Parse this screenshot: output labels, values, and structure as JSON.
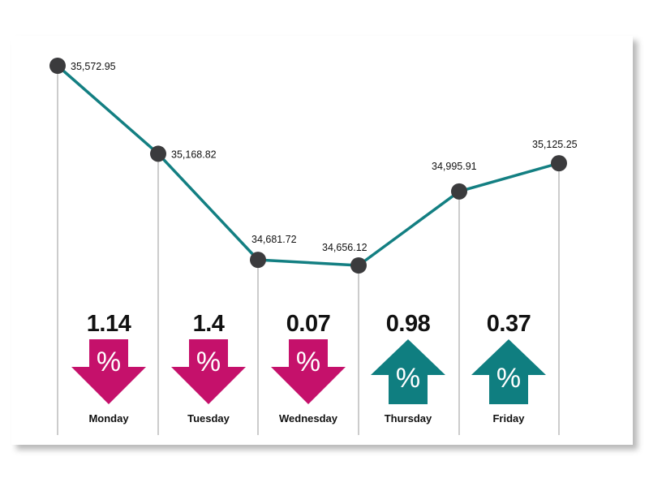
{
  "chart_data": {
    "type": "line",
    "categories": [
      "Monday",
      "Tuesday",
      "Wednesday",
      "Thursday",
      "Friday",
      ""
    ],
    "values": [
      35572.95,
      35168.82,
      34681.72,
      34656.12,
      34995.91,
      35125.25
    ],
    "value_labels": [
      "35,572.95",
      "35,168.82",
      "34,681.72",
      "34,656.12",
      "34,995.91",
      "35,125.25"
    ],
    "changes": [
      {
        "day": "Monday",
        "value": "1.14",
        "direction": "down"
      },
      {
        "day": "Tuesday",
        "value": "1.4",
        "direction": "down"
      },
      {
        "day": "Wednesday",
        "value": "0.07",
        "direction": "down"
      },
      {
        "day": "Thursday",
        "value": "0.98",
        "direction": "up"
      },
      {
        "day": "Friday",
        "value": "0.37",
        "direction": "up"
      }
    ],
    "percent_symbol": "%",
    "title": "",
    "xlabel": "",
    "ylabel": "",
    "ylim": [
      34600,
      35600
    ],
    "grid": false,
    "line_color": "#137f82",
    "marker_color": "#3b3b3d",
    "down_color": "#c5116b",
    "up_color": "#0f7e80"
  }
}
